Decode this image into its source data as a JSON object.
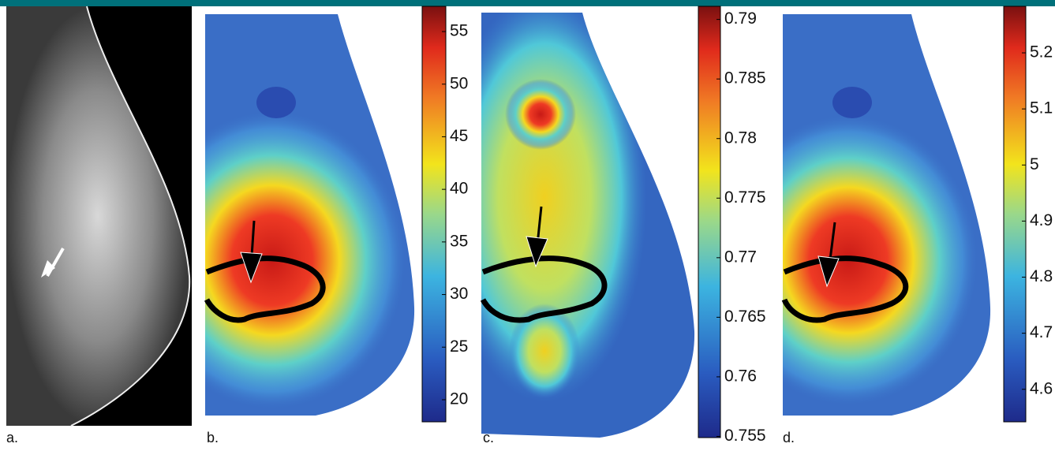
{
  "panels": [
    {
      "label": "a."
    },
    {
      "label": "b.",
      "colorbar": {
        "lim": [
          17.9,
          57.4
        ],
        "ticks": [
          20,
          25,
          30,
          35,
          40,
          45,
          50,
          55
        ]
      }
    },
    {
      "label": "c.",
      "colorbar": {
        "lim": [
          0.7549,
          0.7911
        ],
        "ticks": [
          0.755,
          0.76,
          0.765,
          0.77,
          0.775,
          0.78,
          0.785,
          0.79
        ]
      }
    },
    {
      "label": "d.",
      "colorbar": {
        "lim": [
          4.542,
          5.283
        ],
        "ticks": [
          4.6,
          4.7,
          4.8,
          4.9,
          5,
          5.1,
          5.2
        ]
      }
    }
  ]
}
